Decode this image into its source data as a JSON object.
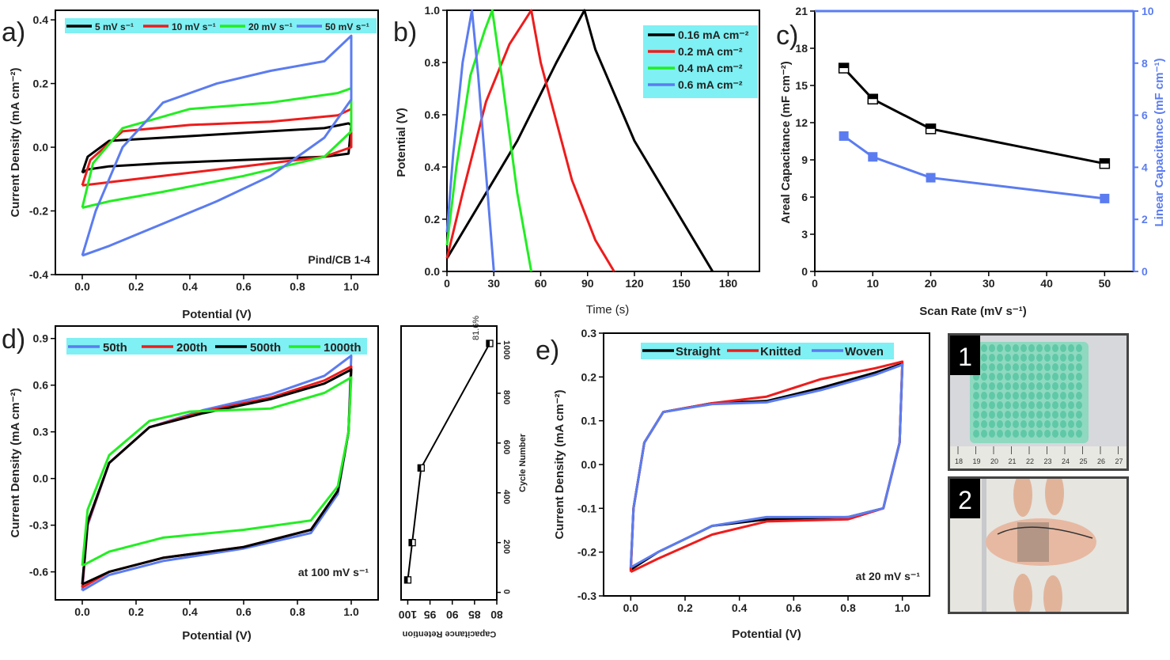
{
  "colors": {
    "black": "#000000",
    "red": "#ee1c1c",
    "green": "#22ee22",
    "blue": "#5b7cf0",
    "legend_bg": "#7ff0f3",
    "right_axis": "#5b7cf0"
  },
  "chart_data": [
    {
      "id": "a",
      "type": "line",
      "panel_label": "a)",
      "xlabel": "Potential (V)",
      "ylabel": "Current Density (mA cm⁻²)",
      "xlim": [
        -0.1,
        1.1
      ],
      "ylim": [
        -0.4,
        0.43
      ],
      "xticks": [
        "0.0",
        "0.2",
        "0.4",
        "0.6",
        "0.8",
        "1.0"
      ],
      "yticks": [
        "-0.4",
        "-0.2",
        "0.0",
        "0.2",
        "0.4"
      ],
      "annotation": "Pind/CB 1-4",
      "series": [
        {
          "name": "5 mV s⁻¹",
          "color": "black",
          "loop": [
            [
              0,
              -0.08
            ],
            [
              0.02,
              -0.03
            ],
            [
              0.1,
              0.02
            ],
            [
              0.3,
              0.03
            ],
            [
              0.6,
              0.045
            ],
            [
              0.9,
              0.06
            ],
            [
              0.99,
              0.075
            ],
            [
              1.0,
              0.07
            ],
            [
              0.99,
              -0.02
            ],
            [
              0.9,
              -0.03
            ],
            [
              0.6,
              -0.04
            ],
            [
              0.3,
              -0.05
            ],
            [
              0.1,
              -0.06
            ],
            [
              0.02,
              -0.07
            ],
            [
              0,
              -0.08
            ]
          ]
        },
        {
          "name": "10 mV s⁻¹",
          "color": "red",
          "loop": [
            [
              0,
              -0.12
            ],
            [
              0.03,
              -0.04
            ],
            [
              0.15,
              0.05
            ],
            [
              0.4,
              0.07
            ],
            [
              0.7,
              0.08
            ],
            [
              0.95,
              0.1
            ],
            [
              1.0,
              0.12
            ],
            [
              1.0,
              0.0
            ],
            [
              0.9,
              -0.03
            ],
            [
              0.6,
              -0.06
            ],
            [
              0.3,
              -0.09
            ],
            [
              0.1,
              -0.11
            ],
            [
              0,
              -0.12
            ]
          ]
        },
        {
          "name": "20 mV s⁻¹",
          "color": "green",
          "loop": [
            [
              0,
              -0.19
            ],
            [
              0.04,
              -0.05
            ],
            [
              0.15,
              0.06
            ],
            [
              0.4,
              0.12
            ],
            [
              0.7,
              0.14
            ],
            [
              0.95,
              0.17
            ],
            [
              1.0,
              0.185
            ],
            [
              1.0,
              0.05
            ],
            [
              0.9,
              -0.03
            ],
            [
              0.6,
              -0.09
            ],
            [
              0.3,
              -0.14
            ],
            [
              0.1,
              -0.17
            ],
            [
              0,
              -0.19
            ]
          ]
        },
        {
          "name": "50 mV s⁻¹",
          "color": "blue",
          "loop": [
            [
              0,
              -0.34
            ],
            [
              0.05,
              -0.2
            ],
            [
              0.15,
              0.0
            ],
            [
              0.3,
              0.14
            ],
            [
              0.5,
              0.2
            ],
            [
              0.7,
              0.24
            ],
            [
              0.9,
              0.27
            ],
            [
              1.0,
              0.35
            ],
            [
              1.0,
              0.15
            ],
            [
              0.9,
              0.03
            ],
            [
              0.7,
              -0.09
            ],
            [
              0.5,
              -0.17
            ],
            [
              0.3,
              -0.24
            ],
            [
              0.1,
              -0.31
            ],
            [
              0,
              -0.34
            ]
          ]
        }
      ]
    },
    {
      "id": "b",
      "type": "line",
      "panel_label": "b)",
      "xlabel": "Time (s)",
      "ylabel": "Potential (V)",
      "xlim": [
        0,
        200
      ],
      "ylim": [
        0,
        1.0
      ],
      "xticks": [
        "0",
        "30",
        "60",
        "90",
        "120",
        "150",
        "180"
      ],
      "yticks": [
        "0.0",
        "0.2",
        "0.4",
        "0.6",
        "0.8",
        "1.0"
      ],
      "series": [
        {
          "name": "0.16 mA cm⁻²",
          "color": "black",
          "points": [
            [
              0,
              0.05
            ],
            [
              20,
              0.25
            ],
            [
              45,
              0.5
            ],
            [
              70,
              0.8
            ],
            [
              88,
              1.0
            ],
            [
              95,
              0.85
            ],
            [
              120,
              0.5
            ],
            [
              150,
              0.2
            ],
            [
              170,
              0.0
            ]
          ]
        },
        {
          "name": "0.2 mA cm⁻²",
          "color": "red",
          "points": [
            [
              0,
              0.05
            ],
            [
              10,
              0.3
            ],
            [
              25,
              0.65
            ],
            [
              40,
              0.87
            ],
            [
              54,
              1.0
            ],
            [
              60,
              0.8
            ],
            [
              80,
              0.35
            ],
            [
              95,
              0.12
            ],
            [
              107,
              0.0
            ]
          ]
        },
        {
          "name": "0.4 mA cm⁻²",
          "color": "green",
          "points": [
            [
              0,
              0.1
            ],
            [
              6,
              0.4
            ],
            [
              15,
              0.75
            ],
            [
              24,
              0.92
            ],
            [
              29,
              1.0
            ],
            [
              35,
              0.75
            ],
            [
              45,
              0.3
            ],
            [
              54,
              0.0
            ]
          ]
        },
        {
          "name": "0.6 mA cm⁻²",
          "color": "blue",
          "points": [
            [
              0,
              0.15
            ],
            [
              4,
              0.45
            ],
            [
              10,
              0.8
            ],
            [
              16,
              1.0
            ],
            [
              20,
              0.75
            ],
            [
              26,
              0.3
            ],
            [
              30,
              0.0
            ]
          ]
        }
      ]
    },
    {
      "id": "c",
      "type": "line",
      "panel_label": "c)",
      "xlabel": "Scan Rate (mV s⁻¹)",
      "ylabel": "Areal Capacitance (mF cm⁻²)",
      "y2label": "Linear Capacitance (mF cm⁻¹)",
      "xlim": [
        0,
        55
      ],
      "ylim": [
        0,
        21
      ],
      "y2lim": [
        0,
        10
      ],
      "xticks": [
        "0",
        "10",
        "20",
        "30",
        "40",
        "50"
      ],
      "yticks": [
        "0",
        "3",
        "6",
        "9",
        "12",
        "15",
        "18",
        "21"
      ],
      "y2ticks": [
        "0",
        "2",
        "4",
        "6",
        "8",
        "10"
      ],
      "x": [
        5,
        10,
        20,
        50
      ],
      "series": [
        {
          "name": "Areal",
          "color": "black",
          "axis": "left",
          "values": [
            16.4,
            13.9,
            11.5,
            8.7
          ]
        },
        {
          "name": "Linear",
          "color": "blue",
          "axis": "right",
          "values": [
            5.2,
            4.4,
            3.6,
            2.8
          ]
        }
      ]
    },
    {
      "id": "d",
      "type": "line",
      "panel_label": "d)",
      "xlabel": "Potential (V)",
      "ylabel": "Current Density (mA cm⁻²)",
      "xlim": [
        -0.1,
        1.1
      ],
      "ylim": [
        -0.78,
        0.98
      ],
      "xticks": [
        "0.0",
        "0.2",
        "0.4",
        "0.6",
        "0.8",
        "1.0"
      ],
      "yticks": [
        "-0.6",
        "-0.3",
        "0.0",
        "0.3",
        "0.6",
        "0.9"
      ],
      "annotation": "at 100 mV s⁻¹",
      "series": [
        {
          "name": "50th",
          "color": "blue",
          "loop": [
            [
              0,
              -0.72
            ],
            [
              0.02,
              -0.3
            ],
            [
              0.1,
              0.1
            ],
            [
              0.25,
              0.33
            ],
            [
              0.45,
              0.44
            ],
            [
              0.7,
              0.54
            ],
            [
              0.9,
              0.66
            ],
            [
              1.0,
              0.79
            ],
            [
              0.99,
              0.3
            ],
            [
              0.95,
              -0.1
            ],
            [
              0.85,
              -0.35
            ],
            [
              0.6,
              -0.45
            ],
            [
              0.3,
              -0.53
            ],
            [
              0.1,
              -0.62
            ],
            [
              0,
              -0.72
            ]
          ]
        },
        {
          "name": "200th",
          "color": "red",
          "loop": [
            [
              0,
              -0.7
            ],
            [
              0.02,
              -0.29
            ],
            [
              0.1,
              0.1
            ],
            [
              0.25,
              0.33
            ],
            [
              0.45,
              0.43
            ],
            [
              0.7,
              0.52
            ],
            [
              0.9,
              0.63
            ],
            [
              1.0,
              0.72
            ],
            [
              0.99,
              0.3
            ],
            [
              0.95,
              -0.08
            ],
            [
              0.85,
              -0.33
            ],
            [
              0.6,
              -0.44
            ],
            [
              0.3,
              -0.51
            ],
            [
              0.1,
              -0.6
            ],
            [
              0,
              -0.7
            ]
          ]
        },
        {
          "name": "500th",
          "color": "black",
          "loop": [
            [
              0,
              -0.68
            ],
            [
              0.02,
              -0.28
            ],
            [
              0.1,
              0.1
            ],
            [
              0.25,
              0.33
            ],
            [
              0.45,
              0.42
            ],
            [
              0.7,
              0.51
            ],
            [
              0.9,
              0.61
            ],
            [
              1.0,
              0.7
            ],
            [
              0.99,
              0.3
            ],
            [
              0.95,
              -0.08
            ],
            [
              0.85,
              -0.33
            ],
            [
              0.6,
              -0.44
            ],
            [
              0.3,
              -0.51
            ],
            [
              0.1,
              -0.6
            ],
            [
              0,
              -0.68
            ]
          ]
        },
        {
          "name": "1000th",
          "color": "green",
          "loop": [
            [
              0,
              -0.56
            ],
            [
              0.02,
              -0.2
            ],
            [
              0.1,
              0.15
            ],
            [
              0.25,
              0.37
            ],
            [
              0.4,
              0.43
            ],
            [
              0.7,
              0.45
            ],
            [
              0.9,
              0.55
            ],
            [
              1.0,
              0.65
            ],
            [
              0.99,
              0.3
            ],
            [
              0.95,
              -0.05
            ],
            [
              0.85,
              -0.27
            ],
            [
              0.6,
              -0.33
            ],
            [
              0.3,
              -0.38
            ],
            [
              0.1,
              -0.47
            ],
            [
              0,
              -0.56
            ]
          ]
        }
      ]
    },
    {
      "id": "d_inset",
      "type": "line",
      "xlabel": "Capacitance Retention",
      "ylabel": "Cycle Number",
      "xlim": [
        101.5,
        80
      ],
      "ylim": [
        -30,
        1070
      ],
      "xticks": [
        "100",
        "95",
        "90",
        "85",
        "80"
      ],
      "yticks": [
        "0",
        "200",
        "400",
        "600",
        "800",
        "1000"
      ],
      "x": [
        100,
        99,
        97,
        81.6
      ],
      "y": [
        50,
        200,
        500,
        1000
      ],
      "annotation": "81.6%"
    },
    {
      "id": "e",
      "type": "line",
      "panel_label": "e)",
      "xlabel": "Potential (V)",
      "ylabel": "Current Density (mA cm⁻²)",
      "xlim": [
        -0.1,
        1.1
      ],
      "ylim": [
        -0.3,
        0.3
      ],
      "xticks": [
        "0.0",
        "0.2",
        "0.4",
        "0.6",
        "0.8",
        "1.0"
      ],
      "yticks": [
        "-0.3",
        "-0.2",
        "-0.1",
        "0.0",
        "0.1",
        "0.2",
        "0.3"
      ],
      "annotation": "at 20 mV s⁻¹",
      "series": [
        {
          "name": "Straight",
          "color": "black",
          "loop": [
            [
              0,
              -0.24
            ],
            [
              0.01,
              -0.1
            ],
            [
              0.05,
              0.05
            ],
            [
              0.12,
              0.12
            ],
            [
              0.3,
              0.14
            ],
            [
              0.5,
              0.145
            ],
            [
              0.7,
              0.175
            ],
            [
              0.9,
              0.21
            ],
            [
              1.0,
              0.23
            ],
            [
              0.99,
              0.05
            ],
            [
              0.93,
              -0.1
            ],
            [
              0.8,
              -0.12
            ],
            [
              0.5,
              -0.125
            ],
            [
              0.3,
              -0.14
            ],
            [
              0.1,
              -0.2
            ],
            [
              0,
              -0.24
            ]
          ]
        },
        {
          "name": "Knitted",
          "color": "red",
          "loop": [
            [
              0,
              -0.245
            ],
            [
              0.01,
              -0.1
            ],
            [
              0.05,
              0.05
            ],
            [
              0.12,
              0.12
            ],
            [
              0.3,
              0.14
            ],
            [
              0.5,
              0.155
            ],
            [
              0.7,
              0.195
            ],
            [
              0.9,
              0.22
            ],
            [
              1.0,
              0.235
            ],
            [
              0.99,
              0.05
            ],
            [
              0.93,
              -0.1
            ],
            [
              0.8,
              -0.125
            ],
            [
              0.5,
              -0.13
            ],
            [
              0.3,
              -0.16
            ],
            [
              0.1,
              -0.215
            ],
            [
              0,
              -0.245
            ]
          ]
        },
        {
          "name": "Woven",
          "color": "blue",
          "loop": [
            [
              0,
              -0.235
            ],
            [
              0.01,
              -0.1
            ],
            [
              0.05,
              0.05
            ],
            [
              0.12,
              0.12
            ],
            [
              0.3,
              0.138
            ],
            [
              0.5,
              0.142
            ],
            [
              0.7,
              0.17
            ],
            [
              0.9,
              0.205
            ],
            [
              1.0,
              0.228
            ],
            [
              0.99,
              0.05
            ],
            [
              0.93,
              -0.1
            ],
            [
              0.8,
              -0.12
            ],
            [
              0.5,
              -0.12
            ],
            [
              0.3,
              -0.14
            ],
            [
              0.1,
              -0.2
            ],
            [
              0,
              -0.235
            ]
          ]
        }
      ]
    }
  ],
  "photos": [
    {
      "label": "1",
      "ruler_numbers": [
        "18",
        "19",
        "20",
        "21",
        "22",
        "23",
        "24",
        "25",
        "26",
        "27"
      ]
    },
    {
      "label": "2"
    }
  ]
}
